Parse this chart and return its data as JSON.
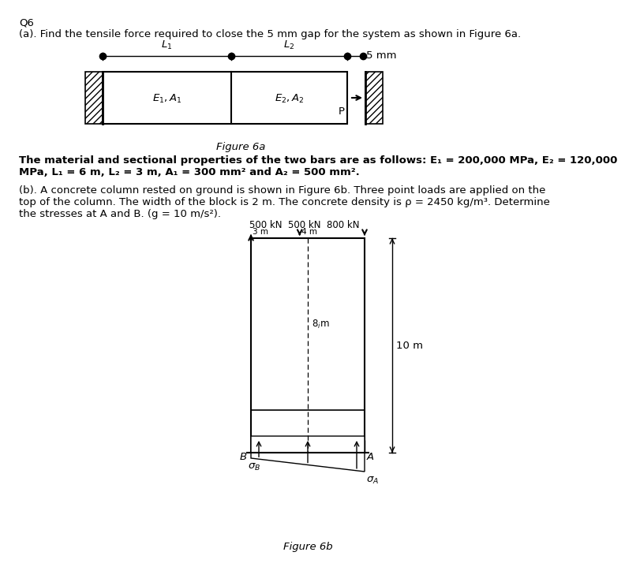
{
  "title_q": "Q6",
  "part_a_text": "(a). Find the tensile force required to close the 5 mm gap for the system as shown in Figure 6a.",
  "fig6a_caption": "Figure 6a",
  "prop_line1": "The material and sectional properties of the two bars are as follows: E₁ = 200,000 MPa, E₂ = 120,000",
  "prop_line2": "MPa, L₁ = 6 m, L₂ = 3 m, A₁ = 300 mm² and A₂ = 500 mm².",
  "part_b_line1": "(b). A concrete column rested on ground is shown in Figure 6b. Three point loads are applied on the",
  "part_b_line2": "top of the column. The width of the block is 2 m. The concrete density is ρ = 2450 kg/m³. Determine",
  "part_b_line3": "the stresses at A and B. (g = 10 m/s²).",
  "fig6b_caption": "Figure 6b",
  "bg": "#ffffff",
  "tc": "#000000"
}
